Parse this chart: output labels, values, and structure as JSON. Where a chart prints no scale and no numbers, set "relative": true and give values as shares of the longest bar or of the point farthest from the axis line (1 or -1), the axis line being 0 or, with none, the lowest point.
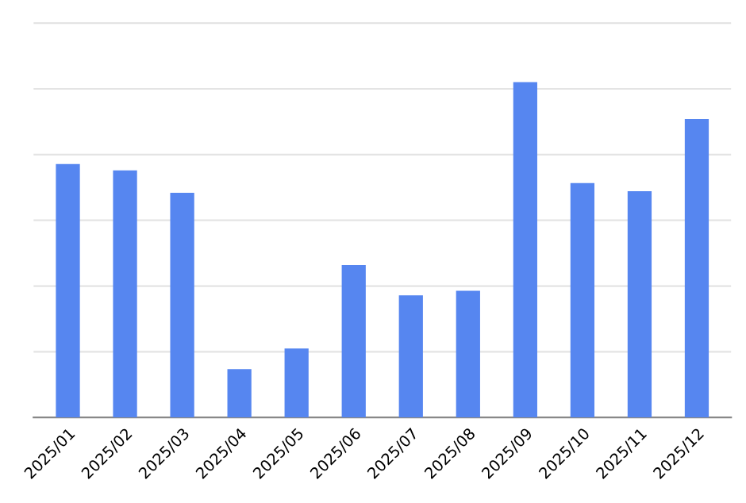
{
  "chart_data": {
    "type": "bar",
    "relative": true,
    "grid": "y",
    "categories": [
      "2025/01",
      "2025/02",
      "2025/03",
      "2025/04",
      "2025/05",
      "2025/06",
      "2025/07",
      "2025/08",
      "2025/09",
      "2025/10",
      "2025/11",
      "2025/12"
    ],
    "series": [
      {
        "color": "#5686f0",
        "values": [
          0.756,
          0.737,
          0.67,
          0.144,
          0.206,
          0.455,
          0.364,
          0.378,
          1,
          0.699,
          0.675,
          0.89
        ]
      }
    ]
  }
}
